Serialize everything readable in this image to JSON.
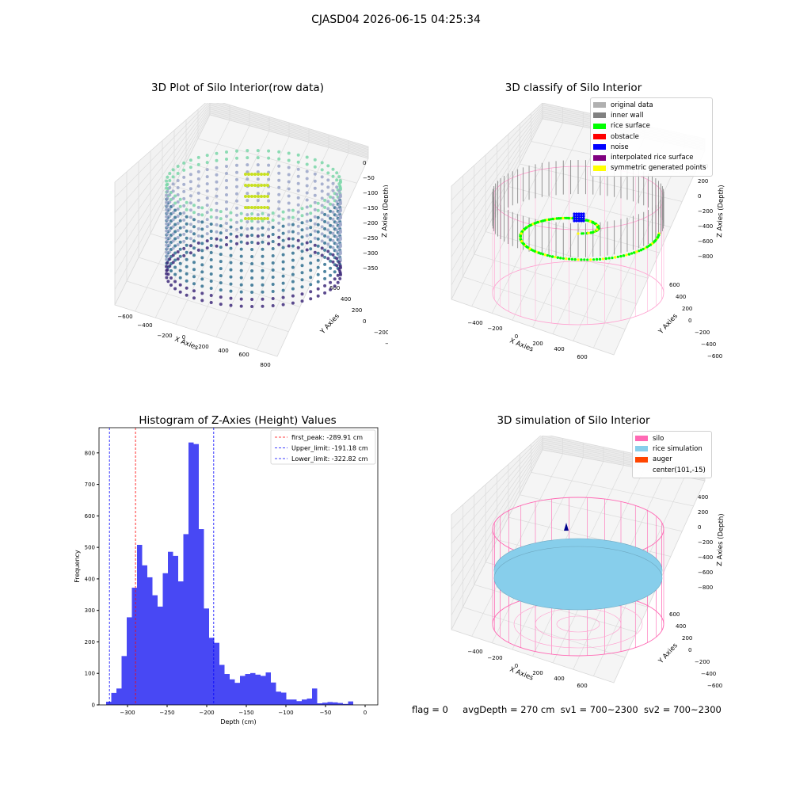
{
  "suptitle": "CJASD04 2026-06-15 04:25:34",
  "panel_raw": {
    "title": "3D Plot of Silo Interior(row data)",
    "xlabel": "X Axies",
    "ylabel": "Y Axies",
    "zlabel": "Z Axies (Depth)",
    "xticks": [
      "−600",
      "−400",
      "−200",
      "0",
      "200",
      "400",
      "600",
      "800"
    ],
    "yticks": [
      "600",
      "400",
      "200",
      "0",
      "−200",
      "−400",
      "−600"
    ],
    "zticks": [
      "0",
      "−50",
      "−100",
      "−150",
      "−200",
      "−250",
      "−300",
      "−350"
    ]
  },
  "panel_classify": {
    "title": "3D classify of Silo Interior",
    "xlabel": "X Axies",
    "ylabel": "Y Axies",
    "zlabel": "Z Axies (Depth)",
    "xticks": [
      "−400",
      "−200",
      "0",
      "200",
      "400",
      "600"
    ],
    "yticks": [
      "600",
      "400",
      "200",
      "0",
      "−200",
      "−400",
      "−600"
    ],
    "zticks": [
      "400",
      "200",
      "0",
      "−200",
      "−400",
      "−600",
      "−800"
    ],
    "legend": [
      {
        "label": "original data",
        "color": "#b0b0b0"
      },
      {
        "label": "inner wall",
        "color": "#808080"
      },
      {
        "label": "rice surface",
        "color": "#00ff00"
      },
      {
        "label": "obstacle",
        "color": "#ff0000"
      },
      {
        "label": "noise",
        "color": "#0000ff"
      },
      {
        "label": "interpolated rice surface",
        "color": "#800080"
      },
      {
        "label": "symmetric generated points",
        "color": "#ffff00"
      }
    ]
  },
  "panel_sim": {
    "title": "3D simulation of Silo Interior",
    "xlabel": "X Axies",
    "ylabel": "Y Axies",
    "zlabel": "Z Axies (Depth)",
    "xticks": [
      "−400",
      "−200",
      "0",
      "200",
      "400",
      "600"
    ],
    "yticks": [
      "600",
      "400",
      "200",
      "0",
      "−200",
      "−400",
      "−600"
    ],
    "zticks": [
      "400",
      "200",
      "0",
      "−200",
      "−400",
      "−600",
      "−800"
    ],
    "legend": [
      {
        "label": "silo",
        "color": "#ff69b4"
      },
      {
        "label": "rice simulation",
        "color": "#87ceeb"
      },
      {
        "label": "auger",
        "color": "#ff4500"
      },
      {
        "label": "center(101,-15)",
        "color": ""
      }
    ]
  },
  "status": {
    "flag": "flag = 0",
    "avg": "avgDepth = 270 cm",
    "sv1": "sv1 = 700~2300",
    "sv2": "sv2 = 700~2300"
  },
  "chart_data": [
    {
      "type": "bar",
      "title": "Histogram of Z-Axies (Height) Values",
      "xlabel": "Depth (cm)",
      "ylabel": "Frequency",
      "xlim": [
        -336,
        16
      ],
      "ylim": [
        0,
        880
      ],
      "bin_start": -327,
      "bin_width": 6.5,
      "values": [
        10,
        38,
        52,
        155,
        278,
        372,
        508,
        443,
        405,
        348,
        312,
        418,
        486,
        473,
        392,
        542,
        833,
        828,
        558,
        306,
        213,
        197,
        127,
        98,
        81,
        70,
        92,
        98,
        101,
        96,
        92,
        103,
        71,
        42,
        39,
        17,
        17,
        12,
        17,
        20,
        52,
        5,
        7,
        9,
        8,
        6,
        3,
        11
      ],
      "xticks": [
        -300,
        -250,
        -200,
        -150,
        -100,
        -50,
        0
      ],
      "xtick_labels": [
        "−300",
        "−250",
        "−200",
        "−150",
        "−100",
        "−50",
        "0"
      ],
      "yticks": [
        0,
        100,
        200,
        300,
        400,
        500,
        600,
        700,
        800
      ],
      "ytick_labels": [
        "0",
        "100",
        "200",
        "300",
        "400",
        "500",
        "600",
        "700",
        "800"
      ],
      "bar_color": "#4848f4",
      "vlines": [
        {
          "name": "first_peak: -289.91 cm",
          "x": -289.91,
          "color": "#ff0000"
        },
        {
          "name": "Upper_limit: -191.18 cm",
          "x": -191.18,
          "color": "#0000ff"
        },
        {
          "name": "Lower_limit: -322.82 cm",
          "x": -322.82,
          "color": "#0000ff"
        }
      ],
      "legend_position": "top-right",
      "grid": false
    }
  ]
}
